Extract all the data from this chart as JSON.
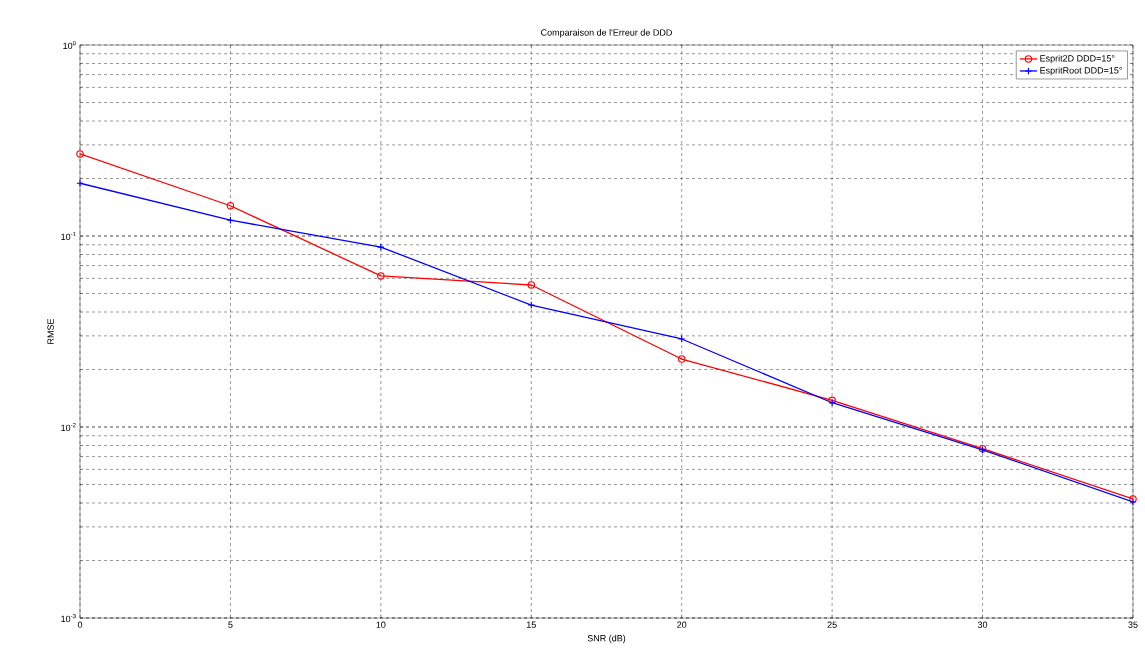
{
  "chart_data": {
    "type": "line",
    "title": "Comparaison de l'Erreur de DDD",
    "xlabel": "SNR (dB)",
    "ylabel": "RMSE",
    "x": [
      0,
      5,
      10,
      15,
      20,
      25,
      30,
      35
    ],
    "series": [
      {
        "name": "Esprit2D DDD=15°",
        "color": "#ff0000",
        "marker": "circle",
        "values": [
          0.269,
          0.144,
          0.0618,
          0.0554,
          0.0227,
          0.0138,
          0.0077,
          0.0042
        ]
      },
      {
        "name": "EspritRoot DDD=15°",
        "color": "#0000ff",
        "marker": "cross",
        "values": [
          0.189,
          0.121,
          0.0875,
          0.0435,
          0.0289,
          0.0134,
          0.0076,
          0.00405
        ]
      }
    ],
    "log": "y",
    "xlim": [
      0,
      35
    ],
    "ylim": [
      0.001,
      1
    ],
    "xticks": [
      0,
      5,
      10,
      15,
      20,
      25,
      30,
      35
    ],
    "yticks": [
      {
        "value": 0.001,
        "label": "10$^{-3}$"
      },
      {
        "value": 0.01,
        "label": "10$^{-2}$"
      },
      {
        "value": 0.1,
        "label": "10$^{-1}$"
      },
      {
        "value": 1,
        "label": "10$^{0}$"
      }
    ],
    "grid": true,
    "legend": "top right",
    "line_style": "solid"
  }
}
